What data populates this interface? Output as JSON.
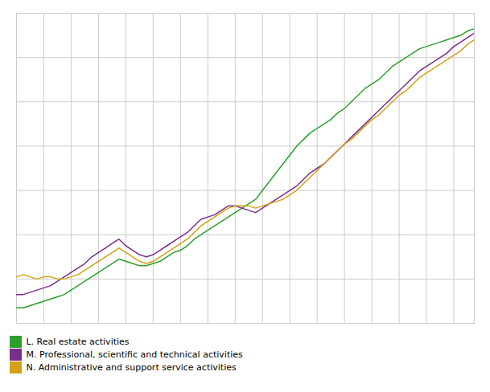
{
  "chart_data": {
    "type": "line",
    "x": [
      0,
      1,
      2,
      3,
      4,
      5,
      6,
      7,
      8,
      9,
      10,
      11,
      12,
      13,
      14,
      15,
      16,
      17,
      18,
      19,
      20,
      21,
      22,
      23,
      24,
      25,
      26,
      27,
      28,
      29,
      30,
      31,
      32,
      33,
      34,
      35,
      36,
      37,
      38,
      39,
      40,
      41,
      42,
      43,
      44,
      45,
      46,
      47,
      48,
      49,
      50,
      51,
      52,
      53,
      54,
      55,
      56,
      57,
      58,
      59,
      60,
      61,
      62,
      63,
      64,
      65,
      66,
      67
    ],
    "series": [
      {
        "name": "L. Real estate activities",
        "color": "#2ca02c",
        "values": [
          87,
          87,
          88,
          89,
          90,
          91,
          92,
          93,
          95,
          97,
          99,
          101,
          103,
          105,
          107,
          109,
          108,
          107,
          106,
          106,
          107,
          108,
          110,
          112,
          113,
          115,
          118,
          120,
          122,
          124,
          126,
          128,
          130,
          132,
          134,
          136,
          140,
          144,
          148,
          152,
          156,
          160,
          163,
          166,
          168,
          170,
          172,
          175,
          177,
          180,
          183,
          186,
          188,
          190,
          193,
          196,
          198,
          200,
          202,
          204,
          205,
          206,
          207,
          208,
          209,
          210,
          212,
          213
        ]
      },
      {
        "name": "M. Professional, scientific and technical activities",
        "color": "#7b2d8b",
        "values": [
          93,
          93,
          94,
          95,
          96,
          97,
          99,
          101,
          103,
          105,
          107,
          110,
          112,
          114,
          116,
          118,
          115,
          113,
          111,
          110,
          111,
          113,
          115,
          117,
          119,
          121,
          124,
          127,
          128,
          129,
          131,
          133,
          133,
          132,
          131,
          130,
          132,
          134,
          136,
          138,
          140,
          142,
          145,
          148,
          150,
          152,
          155,
          158,
          161,
          164,
          167,
          170,
          173,
          176,
          179,
          182,
          185,
          188,
          191,
          194,
          196,
          198,
          200,
          202,
          205,
          207,
          209,
          211
        ]
      },
      {
        "name": "N. Administrative and support service activities",
        "color": "#d4a017",
        "values": [
          101,
          102,
          101,
          100,
          101,
          101,
          100,
          100,
          101,
          102,
          104,
          106,
          108,
          110,
          112,
          114,
          112,
          110,
          108,
          107,
          108,
          110,
          112,
          114,
          116,
          118,
          121,
          124,
          126,
          128,
          130,
          132,
          133,
          133,
          133,
          132,
          133,
          134,
          135,
          136,
          138,
          140,
          143,
          146,
          149,
          152,
          155,
          158,
          161,
          163,
          166,
          169,
          172,
          174,
          177,
          180,
          183,
          185,
          188,
          191,
          193,
          195,
          197,
          199,
          201,
          203,
          206,
          208
        ]
      }
    ],
    "xlim": [
      0,
      67
    ],
    "xticks": [
      0,
      4,
      8,
      12,
      16,
      20,
      24,
      28,
      32,
      36,
      40,
      44,
      48,
      52,
      56,
      60,
      64
    ],
    "ylim": [
      80,
      220
    ],
    "yticks": [
      80,
      100,
      120,
      140,
      160,
      180,
      200,
      220
    ],
    "grid": true,
    "tick_labels": false
  }
}
